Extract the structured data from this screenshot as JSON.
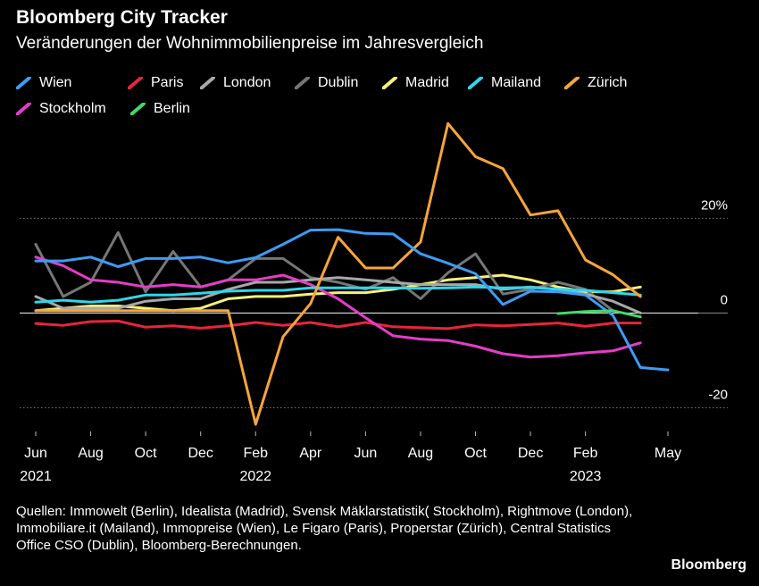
{
  "header": {
    "title": "Bloomberg City Tracker",
    "subtitle": "Veränderungen der Wohnimmobilienpreise im Jahresvergleich"
  },
  "legend": [
    {
      "name": "Wien",
      "color": "#3d9cf5"
    },
    {
      "name": "Paris",
      "color": "#e8243c"
    },
    {
      "name": "London",
      "color": "#a8a8a8"
    },
    {
      "name": "Dublin",
      "color": "#767676"
    },
    {
      "name": "Madrid",
      "color": "#f5f07a"
    },
    {
      "name": "Mailand",
      "color": "#2fd6ea"
    },
    {
      "name": "Zürich",
      "color": "#f7a53b"
    },
    {
      "name": "Stockholm",
      "color": "#e63cc8"
    },
    {
      "name": "Berlin",
      "color": "#41d96b"
    }
  ],
  "footer": {
    "sources": "Quellen: Immowelt (Berlin), Idealista (Madrid), Svensk Mäklarstatistik( Stockholm), Rightmove (London), Immobiliare.it (Mailand), Immopreise (Wien), Le Figaro (Paris), Properstar (Zürich), Central Statistics Office CSO (Dublin), Bloomberg-Berechnungen.",
    "brand": "Bloomberg"
  },
  "chart_data": {
    "type": "line",
    "x": [
      "2021-06",
      "2021-07",
      "2021-08",
      "2021-09",
      "2021-10",
      "2021-11",
      "2021-12",
      "2022-01",
      "2022-02",
      "2022-03",
      "2022-04",
      "2022-05",
      "2022-06",
      "2022-07",
      "2022-08",
      "2022-09",
      "2022-10",
      "2022-11",
      "2022-12",
      "2023-01",
      "2023-02",
      "2023-03",
      "2023-04",
      "2023-05"
    ],
    "x_ticks": [
      {
        "x": "2021-06",
        "label": "Jun",
        "year": "2021"
      },
      {
        "x": "2021-08",
        "label": "Aug",
        "year": ""
      },
      {
        "x": "2021-10",
        "label": "Oct",
        "year": ""
      },
      {
        "x": "2021-12",
        "label": "Dec",
        "year": ""
      },
      {
        "x": "2022-02",
        "label": "Feb",
        "year": "2022"
      },
      {
        "x": "2022-04",
        "label": "Apr",
        "year": ""
      },
      {
        "x": "2022-06",
        "label": "Jun",
        "year": ""
      },
      {
        "x": "2022-08",
        "label": "Aug",
        "year": ""
      },
      {
        "x": "2022-10",
        "label": "Oct",
        "year": ""
      },
      {
        "x": "2022-12",
        "label": "Dec",
        "year": ""
      },
      {
        "x": "2023-02",
        "label": "Feb",
        "year": "2023"
      },
      {
        "x": "2023-05",
        "label": "May",
        "year": ""
      }
    ],
    "y_ticks": [
      {
        "value": 20,
        "label": "20%"
      },
      {
        "value": 0,
        "label": "0"
      },
      {
        "value": -20,
        "label": "-20"
      }
    ],
    "ylim": [
      -25,
      41
    ],
    "grid": "horizontal",
    "zero_line": true,
    "series": [
      {
        "name": "Madrid",
        "color": "#f5f07a",
        "values": [
          0.5,
          1,
          1.5,
          1.5,
          1,
          0.5,
          1,
          3,
          3.5,
          3.5,
          4,
          4.3,
          4.3,
          5,
          6,
          7,
          7.5,
          8,
          7,
          5.5,
          4.5,
          4.5,
          5.5,
          null
        ]
      },
      {
        "name": "Dublin",
        "color": "#767676",
        "values": [
          14.5,
          3.5,
          6.5,
          17,
          4.5,
          13,
          5.5,
          7,
          11.5,
          11.5,
          7.5,
          6.5,
          5,
          7.5,
          3,
          8.5,
          12.5,
          4,
          5,
          6.5,
          5,
          0.5,
          null,
          null
        ]
      },
      {
        "name": "London",
        "color": "#a8a8a8",
        "values": [
          3.5,
          1,
          1,
          1,
          2.5,
          3,
          3,
          5,
          6.5,
          6.5,
          7,
          7.5,
          7,
          6.5,
          6,
          6,
          6,
          5,
          5.5,
          5,
          4,
          2.5,
          0,
          null
        ]
      },
      {
        "name": "Paris",
        "color": "#e8243c",
        "values": [
          -2.2,
          -2.6,
          -1.8,
          -1.7,
          -3,
          -2.7,
          -3.2,
          -2.7,
          -2,
          -2.6,
          -2,
          -2.9,
          -2,
          -2.9,
          -3.1,
          -3.3,
          -2.5,
          -2.7,
          -2.4,
          -2.1,
          -2.8,
          -2.1,
          -2.1,
          null
        ]
      },
      {
        "name": "Stockholm",
        "color": "#e63cc8",
        "values": [
          11.8,
          10,
          7,
          6.5,
          5.5,
          6,
          5.5,
          7,
          7,
          8,
          6,
          3,
          -1,
          -4.8,
          -5.5,
          -5.8,
          -7,
          -8.6,
          -9.3,
          -9,
          -8.4,
          -8,
          -6.3,
          null
        ]
      },
      {
        "name": "Mailand",
        "color": "#2fd6ea",
        "values": [
          2.3,
          2.7,
          2.3,
          2.7,
          3.8,
          3.8,
          4.2,
          4.6,
          4.8,
          4.8,
          5.3,
          5.3,
          5.3,
          5.3,
          5.2,
          5.3,
          5.5,
          5.3,
          5.4,
          5,
          4.8,
          4.3,
          3.8,
          null
        ]
      },
      {
        "name": "Zürich",
        "color": "#f7a53b",
        "values": [
          0.5,
          0.5,
          0.5,
          0.5,
          0.5,
          0.5,
          0.5,
          0.5,
          -23.5,
          -5,
          2,
          16,
          9.5,
          9.5,
          15,
          40,
          33,
          30.5,
          20.7,
          21.6,
          11.2,
          8.1,
          3.5,
          null
        ]
      },
      {
        "name": "Wien",
        "color": "#3d9cf5",
        "values": [
          11,
          11,
          11.8,
          9.8,
          11.5,
          11.5,
          11.8,
          10.6,
          11.7,
          14.5,
          17.5,
          17.6,
          16.8,
          16.7,
          12.5,
          10.5,
          8.3,
          1.8,
          4.6,
          4.5,
          3.8,
          -0.5,
          -11.5,
          -12
        ]
      },
      {
        "name": "Berlin",
        "color": "#41d96b",
        "values": [
          null,
          null,
          null,
          null,
          null,
          null,
          null,
          null,
          null,
          null,
          null,
          null,
          null,
          null,
          null,
          null,
          null,
          null,
          null,
          -0.1,
          0.3,
          0.5,
          -0.8,
          null
        ]
      }
    ]
  }
}
